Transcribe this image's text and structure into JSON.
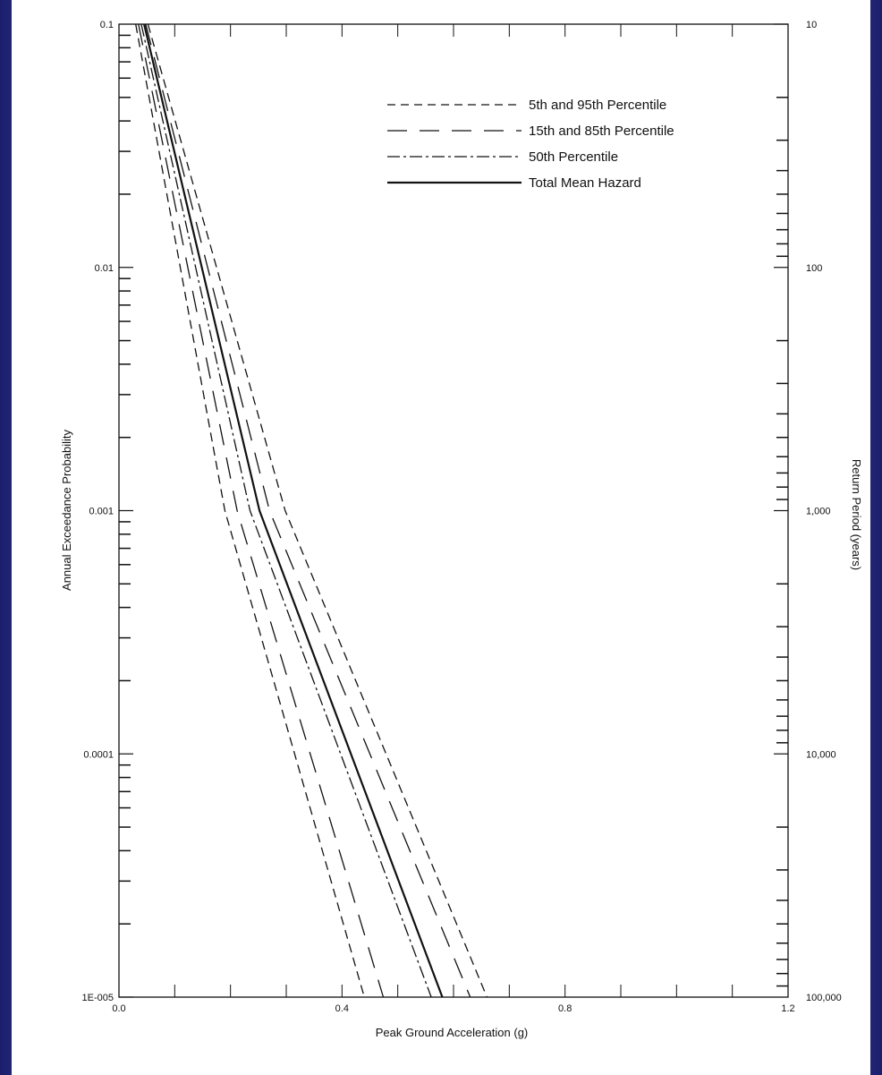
{
  "colors": {
    "background": "#2d318a",
    "paper": "#ffffff",
    "ink": "#111111"
  },
  "chart_data": {
    "type": "line",
    "title": "",
    "xlabel": "Peak Ground Acceleration (g)",
    "ylabel": "Annual Exceedance Probability",
    "y2label": "Return Period (years)",
    "xlim": [
      0,
      1.2
    ],
    "ylim": [
      1e-05,
      0.1
    ],
    "yscale": "log",
    "grid": false,
    "legend_position": "top-right",
    "x_tick_labels": [
      "0.0",
      "0.4",
      "0.8",
      "1.2"
    ],
    "y_tick_labels": [
      "1E-005",
      "0.0001",
      "0.001",
      "0.01",
      "0.1"
    ],
    "y2_tick_labels": [
      "100,000",
      "10,000",
      "1,000",
      "100",
      "10"
    ],
    "legend": [
      "5th and 95th Percentile",
      "15th and 85th Percentile",
      "50th Percentile",
      "Total Mean Hazard"
    ],
    "series": [
      {
        "name": "5th and 95th Percentile",
        "style": "short-dash",
        "x": [
          0.03,
          0.19,
          0.44
        ],
        "y": [
          0.1,
          0.001,
          1e-05
        ]
      },
      {
        "name": "5th and 95th Percentile",
        "style": "short-dash",
        "x": [
          0.052,
          0.298,
          0.66
        ],
        "y": [
          0.1,
          0.001,
          1e-05
        ]
      },
      {
        "name": "15th and 85th Percentile",
        "style": "long-dash",
        "x": [
          0.035,
          0.212,
          0.474
        ],
        "y": [
          0.1,
          0.001,
          1e-05
        ]
      },
      {
        "name": "15th and 85th Percentile",
        "style": "long-dash",
        "x": [
          0.048,
          0.27,
          0.63
        ],
        "y": [
          0.1,
          0.001,
          1e-05
        ]
      },
      {
        "name": "50th Percentile",
        "style": "dash-dot",
        "x": [
          0.04,
          0.235,
          0.56
        ],
        "y": [
          0.1,
          0.001,
          1e-05
        ]
      },
      {
        "name": "Total Mean Hazard",
        "style": "solid",
        "x": [
          0.045,
          0.252,
          0.58
        ],
        "y": [
          0.1,
          0.001,
          1e-05
        ]
      }
    ]
  }
}
